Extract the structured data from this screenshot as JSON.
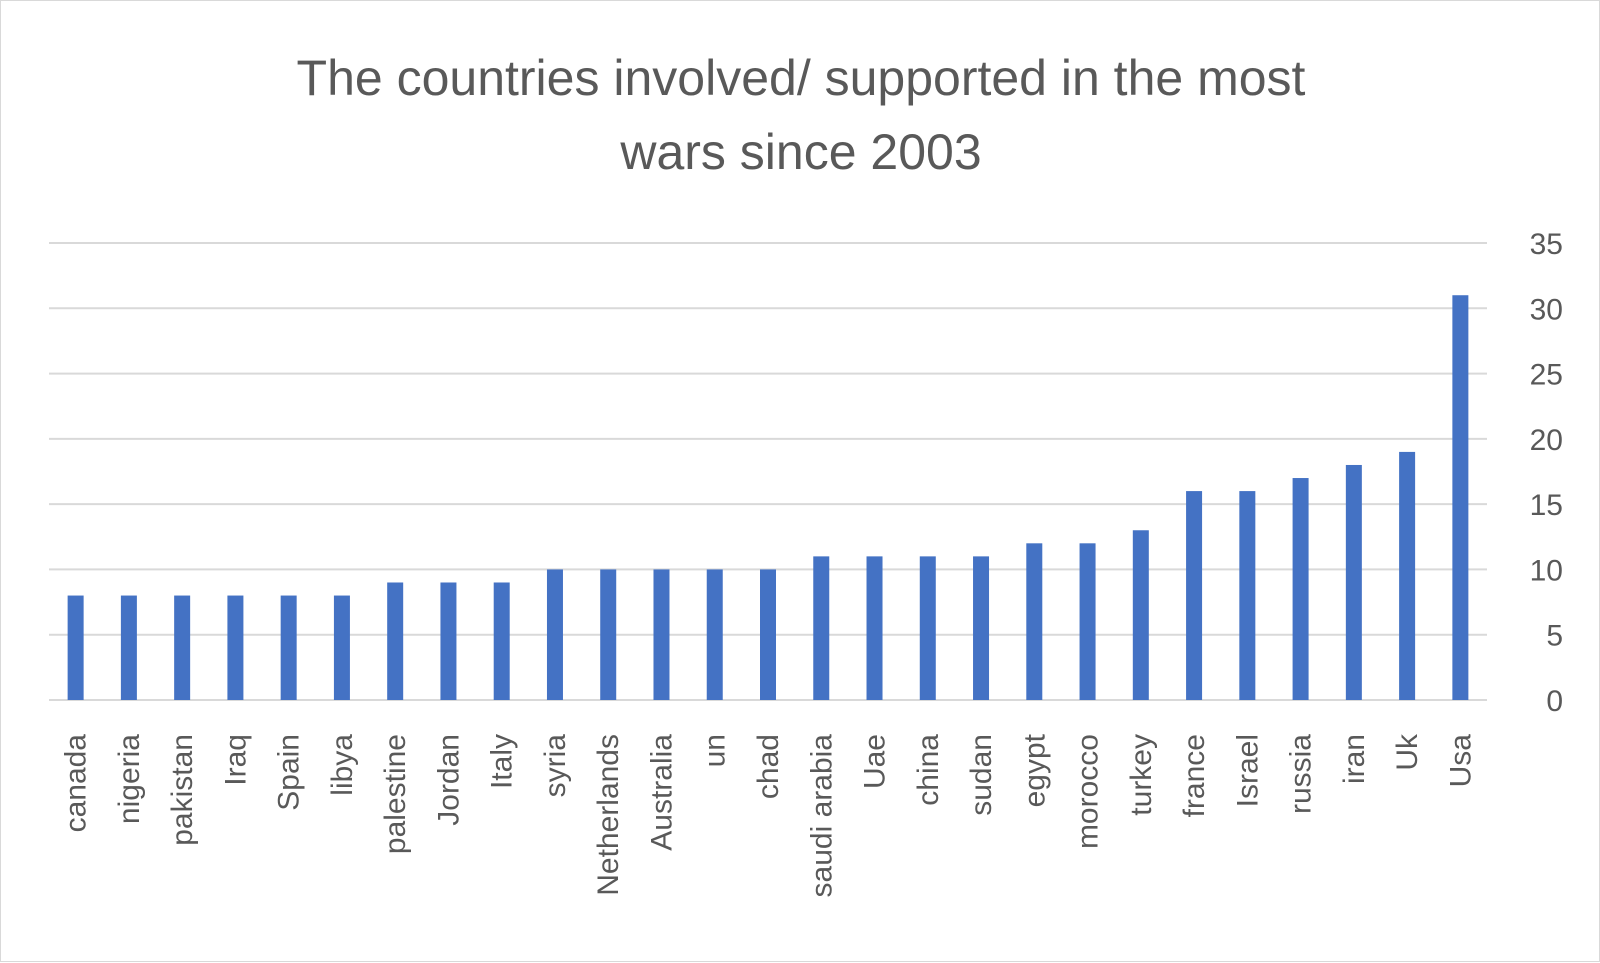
{
  "chart_data": {
    "type": "bar",
    "title_lines": [
      "The countries involved/ supported in the most",
      "wars since 2003"
    ],
    "categories": [
      "canada",
      "nigeria",
      "pakistan",
      "Iraq",
      "Spain",
      "libya",
      "palestine",
      "Jordan",
      "Italy",
      "syria",
      "Netherlands",
      "Australia",
      "un",
      "chad",
      "saudi arabia",
      "Uae",
      "china",
      "sudan",
      "egypt",
      "morocco",
      "turkey",
      "france",
      "Israel",
      "russia",
      "iran",
      "Uk",
      "Usa"
    ],
    "values": [
      8,
      8,
      8,
      8,
      8,
      8,
      9,
      9,
      9,
      10,
      10,
      10,
      10,
      10,
      11,
      11,
      11,
      11,
      12,
      12,
      13,
      16,
      16,
      17,
      18,
      19,
      31
    ],
    "ylim": [
      0,
      35
    ],
    "yticks": [
      "0",
      "5",
      "10",
      "15",
      "20",
      "25",
      "30",
      "35"
    ],
    "y_axis_side": "right",
    "grid": true,
    "bar_color": "#4472c4",
    "xlabel": "",
    "ylabel": ""
  }
}
